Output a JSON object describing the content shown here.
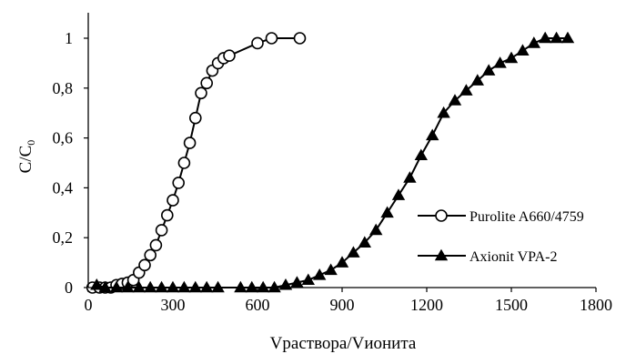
{
  "chart_data": {
    "type": "line",
    "title": "",
    "xlabel": "Vраствора/Vионита",
    "ylabel_main": "C/C",
    "ylabel_sub": "0",
    "xlim": [
      0,
      1800
    ],
    "ylim": [
      0,
      1
    ],
    "x_ticks": [
      "0",
      "300",
      "600",
      "900",
      "1200",
      "1500",
      "1800"
    ],
    "y_ticks": [
      "0",
      "0,2",
      "0,4",
      "0,6",
      "0,8",
      "1"
    ],
    "grid": false,
    "legend_position": "right",
    "series": [
      {
        "name": "Purolite A660/4759",
        "marker": "open-circle",
        "color": "#000000",
        "x": [
          15,
          40,
          60,
          80,
          100,
          120,
          140,
          160,
          180,
          200,
          220,
          240,
          260,
          280,
          300,
          320,
          340,
          360,
          380,
          400,
          420,
          440,
          460,
          480,
          500,
          600,
          650,
          750
        ],
        "y": [
          0,
          0,
          0,
          0,
          0.01,
          0.015,
          0.02,
          0.03,
          0.06,
          0.09,
          0.13,
          0.17,
          0.23,
          0.29,
          0.35,
          0.42,
          0.5,
          0.58,
          0.68,
          0.78,
          0.82,
          0.87,
          0.9,
          0.92,
          0.93,
          0.98,
          1,
          1
        ]
      },
      {
        "name": "Axionit VPA-2",
        "marker": "filled-triangle",
        "color": "#000000",
        "x": [
          30,
          60,
          100,
          140,
          180,
          220,
          260,
          300,
          340,
          380,
          420,
          460,
          540,
          580,
          620,
          660,
          700,
          740,
          780,
          820,
          860,
          900,
          940,
          980,
          1020,
          1060,
          1100,
          1140,
          1180,
          1220,
          1260,
          1300,
          1340,
          1380,
          1420,
          1460,
          1500,
          1540,
          1580,
          1620,
          1660,
          1700
        ],
        "y": [
          0.01,
          0,
          0,
          0,
          0,
          0,
          0,
          0,
          0,
          0,
          0,
          0,
          0,
          0,
          0,
          0,
          0.01,
          0.02,
          0.03,
          0.05,
          0.07,
          0.1,
          0.14,
          0.18,
          0.23,
          0.3,
          0.37,
          0.44,
          0.53,
          0.61,
          0.7,
          0.75,
          0.79,
          0.83,
          0.87,
          0.9,
          0.92,
          0.95,
          0.98,
          1,
          1,
          1
        ]
      }
    ]
  }
}
